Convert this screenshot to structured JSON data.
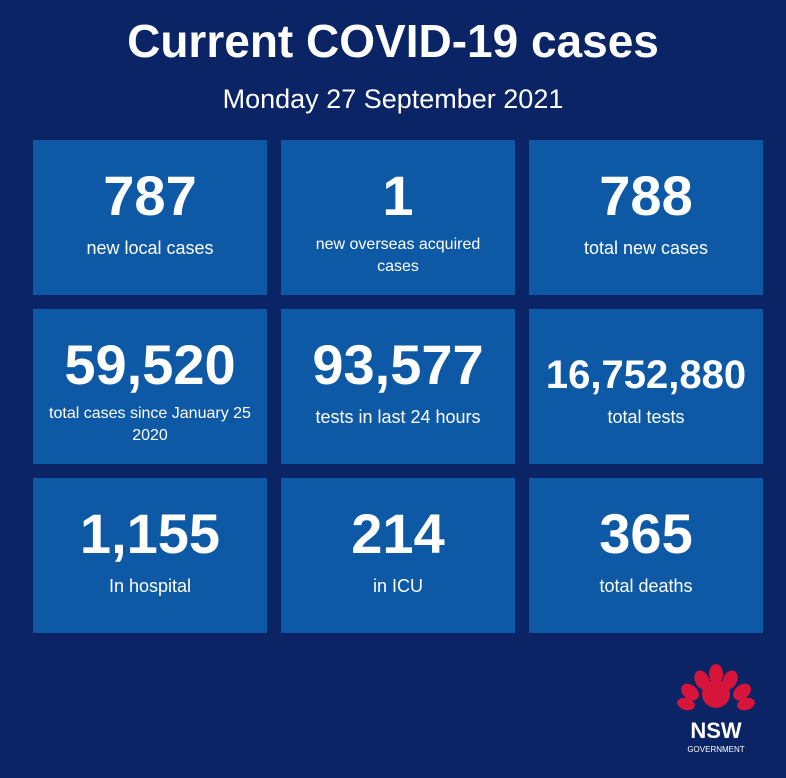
{
  "header": {
    "title": "Current COVID-19 cases",
    "subtitle": "Monday 27 September 2021"
  },
  "tiles": [
    {
      "value": "787",
      "label": "new local cases"
    },
    {
      "value": "1",
      "label": "new overseas acquired cases"
    },
    {
      "value": "788",
      "label": "total new cases"
    },
    {
      "value": "59,520",
      "label": "total cases since January 25 2020"
    },
    {
      "value": "93,577",
      "label": "tests in last 24 hours"
    },
    {
      "value": "16,752,880",
      "label": "total tests"
    },
    {
      "value": "1,155",
      "label": "In hospital"
    },
    {
      "value": "214",
      "label": "in ICU"
    },
    {
      "value": "365",
      "label": "total deaths"
    }
  ],
  "logo": {
    "name": "NSW",
    "subname": "GOVERNMENT"
  }
}
